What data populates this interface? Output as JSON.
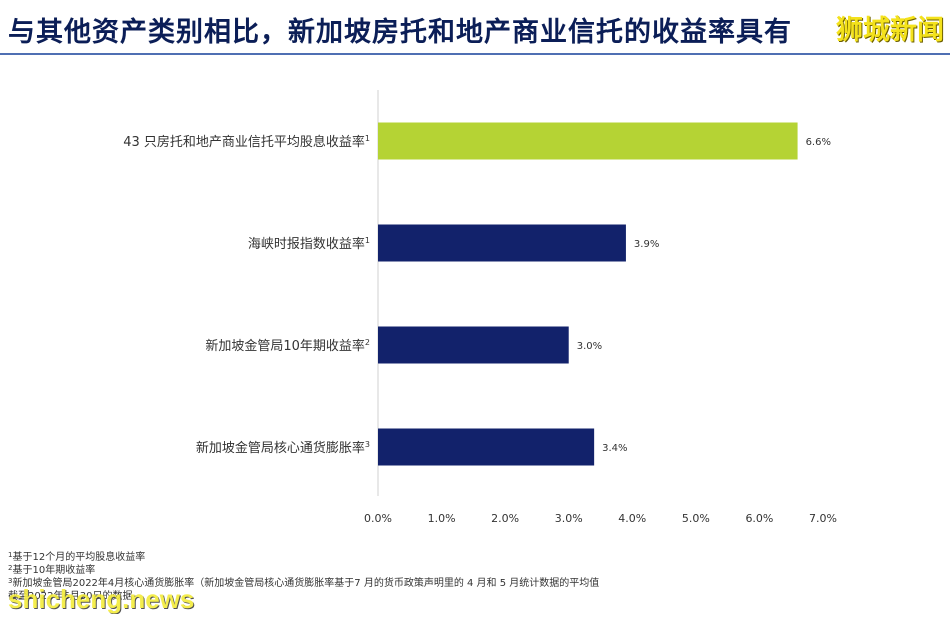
{
  "title": "与其他资产类别相比，新加坡房托和地产商业信托的收益率具有",
  "watermark_top": "狮城新闻",
  "watermark_bottom": "shicheng.news",
  "colors": {
    "highlight": "#b5d334",
    "primary": "#12226b",
    "title": "#0b1e57"
  },
  "chart_data": {
    "type": "bar",
    "orientation": "horizontal",
    "categories": [
      "43 只房托和地产商业信托平均股息收益率",
      "海峡时报指数收益率",
      "新加坡金管局10年期收益率",
      "新加坡金管局核心通货膨胀率"
    ],
    "superscripts": [
      "1",
      "1",
      "2",
      "3"
    ],
    "values": [
      6.6,
      3.9,
      3.0,
      3.4
    ],
    "value_labels": [
      "6.6%",
      "3.9%",
      "3.0%",
      "3.4%"
    ],
    "bar_colors": [
      "#b5d334",
      "#12226b",
      "#12226b",
      "#12226b"
    ],
    "xlim": [
      0,
      7
    ],
    "xticks": [
      "0.0%",
      "1.0%",
      "2.0%",
      "3.0%",
      "4.0%",
      "5.0%",
      "6.0%",
      "7.0%"
    ],
    "grid": false
  },
  "footnotes": [
    {
      "sup": "1",
      "text": "基于12个月的平均股息收益率"
    },
    {
      "sup": "2",
      "text": "基于10年期收益率"
    },
    {
      "sup": "3",
      "text": "新加坡金管局2022年4月核心通货膨胀率（新加坡金管局核心通货膨胀率基于7 月的货币政策声明里的 4 月和 5 月统计数据的平均值"
    },
    {
      "sup": "",
      "text": "截至2022年6月30日的数据"
    }
  ]
}
